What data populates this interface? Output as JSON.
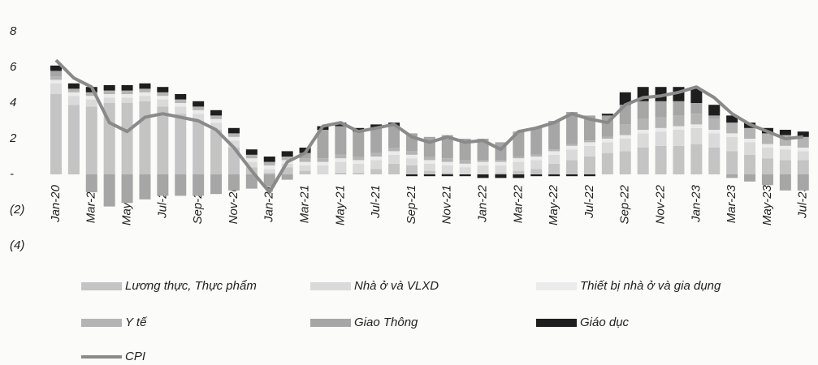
{
  "chart_data": {
    "type": "bar",
    "stacked": true,
    "categories": [
      "Jan-20",
      null,
      "Mar-20",
      null,
      "May-20",
      null,
      "Jul-20",
      null,
      "Sep-20",
      null,
      "Nov-20",
      null,
      "Jan-21",
      null,
      "Mar-21",
      null,
      "May-21",
      null,
      "Jul-21",
      null,
      "Sep-21",
      null,
      "Nov-21",
      null,
      "Jan-22",
      null,
      "Mar-22",
      null,
      "May-22",
      null,
      "Jul-22",
      null,
      "Sep-22",
      null,
      "Nov-22",
      null,
      "Jan-23",
      null,
      "Mar-23",
      null,
      "May-23",
      null,
      "Jul-23"
    ],
    "ylim": [
      -4,
      8
    ],
    "yticks": [
      8,
      6,
      4,
      2,
      {
        "value": 0,
        "label": "-"
      },
      {
        "value": -2,
        "label": "(2)"
      },
      {
        "value": -4,
        "label": "(4)"
      }
    ],
    "grid": false,
    "series": [
      {
        "name": "Lương thực, Thực phẩm",
        "color": "#c4c4c4",
        "values": [
          4.5,
          3.9,
          3.8,
          4.0,
          4.0,
          4.1,
          3.8,
          3.4,
          3.0,
          2.5,
          1.5,
          0.4,
          0.1,
          0.4,
          0.2,
          0.0,
          0.1,
          0.1,
          0.3,
          0.6,
          0.5,
          0.2,
          0.1,
          0.0,
          0.0,
          0.1,
          0.2,
          0.3,
          0.6,
          0.8,
          1.0,
          1.2,
          1.3,
          1.5,
          1.6,
          1.6,
          1.7,
          1.5,
          1.3,
          1.1,
          0.9,
          0.8,
          0.8
        ]
      },
      {
        "name": "Nhà ở và VLXD",
        "color": "#dadada",
        "values": [
          0.6,
          0.5,
          0.4,
          0.3,
          0.3,
          0.3,
          0.4,
          0.4,
          0.4,
          0.4,
          0.4,
          0.3,
          0.2,
          0.2,
          0.3,
          0.5,
          0.6,
          0.5,
          0.5,
          0.5,
          0.4,
          0.4,
          0.4,
          0.4,
          0.5,
          0.4,
          0.5,
          0.5,
          0.5,
          0.6,
          0.6,
          0.6,
          0.7,
          0.8,
          0.8,
          0.9,
          0.9,
          0.8,
          0.8,
          0.7,
          0.6,
          0.6,
          0.5
        ]
      },
      {
        "name": "Thiết bị nhà ở và gia dụng",
        "color": "#ebebeb",
        "values": [
          0.2,
          0.2,
          0.2,
          0.2,
          0.2,
          0.2,
          0.2,
          0.2,
          0.2,
          0.2,
          0.2,
          0.2,
          0.2,
          0.2,
          0.2,
          0.2,
          0.2,
          0.2,
          0.2,
          0.2,
          0.2,
          0.2,
          0.2,
          0.2,
          0.2,
          0.2,
          0.2,
          0.2,
          0.2,
          0.2,
          0.2,
          0.2,
          0.2,
          0.2,
          0.2,
          0.2,
          0.2,
          0.2,
          0.2,
          0.2,
          0.2,
          0.2,
          0.2
        ]
      },
      {
        "name": "Y tế",
        "color": "#b4b4b4",
        "values": [
          0.2,
          0.2,
          0.2,
          0.2,
          0.2,
          0.2,
          0.2,
          0.2,
          0.2,
          0.2,
          0.2,
          0.2,
          0.2,
          0.2,
          0.2,
          0.2,
          0.2,
          0.2,
          0.2,
          0.2,
          0.2,
          0.2,
          0.2,
          0.2,
          0.1,
          0.1,
          0.1,
          0.1,
          0.1,
          0.1,
          0.1,
          0.1,
          0.6,
          0.6,
          0.6,
          0.6,
          0.6,
          0.6,
          0.6,
          0.6,
          0.6,
          0.6,
          0.6
        ]
      },
      {
        "name": "Giao Thông",
        "color": "#a6a6a6",
        "values": [
          0.3,
          0.0,
          -1.0,
          -1.8,
          -1.6,
          -1.4,
          -1.2,
          -1.2,
          -1.2,
          -1.1,
          -0.9,
          -0.8,
          -0.7,
          -0.3,
          0.3,
          1.6,
          1.6,
          1.4,
          1.4,
          1.2,
          1.0,
          1.1,
          1.3,
          1.2,
          1.2,
          1.0,
          1.4,
          1.5,
          1.6,
          1.8,
          1.4,
          1.2,
          1.1,
          1.0,
          0.9,
          0.8,
          0.6,
          0.2,
          -0.2,
          -0.4,
          -0.6,
          -0.9,
          -0.9
        ]
      },
      {
        "name": "Giáo dục",
        "color": "#1e1e1e",
        "values": [
          0.3,
          0.3,
          0.3,
          0.3,
          0.3,
          0.3,
          0.3,
          0.3,
          0.3,
          0.3,
          0.3,
          0.3,
          0.3,
          0.3,
          0.3,
          0.2,
          0.2,
          0.2,
          0.2,
          0.2,
          -0.1,
          -0.1,
          -0.1,
          -0.1,
          -0.2,
          -0.2,
          -0.2,
          -0.1,
          -0.1,
          -0.1,
          -0.1,
          0.1,
          0.7,
          0.8,
          0.8,
          0.8,
          0.8,
          0.6,
          0.4,
          0.3,
          0.3,
          0.3,
          0.3
        ]
      },
      {
        "name": "CPI",
        "type": "line",
        "color": "#8a8a8a",
        "values": [
          6.4,
          5.4,
          4.9,
          2.9,
          2.4,
          3.2,
          3.4,
          3.2,
          3.0,
          2.5,
          1.5,
          0.2,
          -1.0,
          0.7,
          1.2,
          2.7,
          2.9,
          2.4,
          2.6,
          2.8,
          2.1,
          1.8,
          2.1,
          1.8,
          1.9,
          1.4,
          2.4,
          2.6,
          2.9,
          3.4,
          3.1,
          2.9,
          3.9,
          4.3,
          4.4,
          4.6,
          4.9,
          4.3,
          3.4,
          2.8,
          2.4,
          2.0,
          2.1
        ]
      }
    ]
  }
}
